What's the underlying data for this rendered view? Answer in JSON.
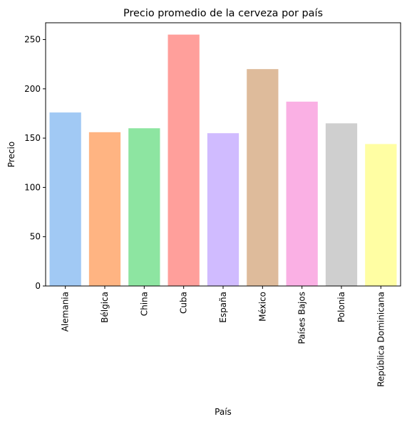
{
  "chart_data": {
    "type": "bar",
    "title": "Precio promedio de la cerveza por país",
    "xlabel": "País",
    "ylabel": "Precio",
    "categories": [
      "Alemania",
      "Bélgica",
      "China",
      "Cuba",
      "España",
      "México",
      "Países Bajos",
      "Polonia",
      "República Dominicana"
    ],
    "values": [
      176,
      156,
      160,
      255,
      155,
      220,
      187,
      165,
      144
    ],
    "colors": [
      "#a1c9f4",
      "#ffb482",
      "#8de5a1",
      "#ff9f9b",
      "#d0bbff",
      "#debb9b",
      "#fab0e4",
      "#cfcfcf",
      "#fffea3"
    ],
    "ylim": [
      0,
      267
    ],
    "yticks": [
      0,
      50,
      100,
      150,
      200,
      250
    ],
    "grid": false,
    "legend": "none"
  }
}
